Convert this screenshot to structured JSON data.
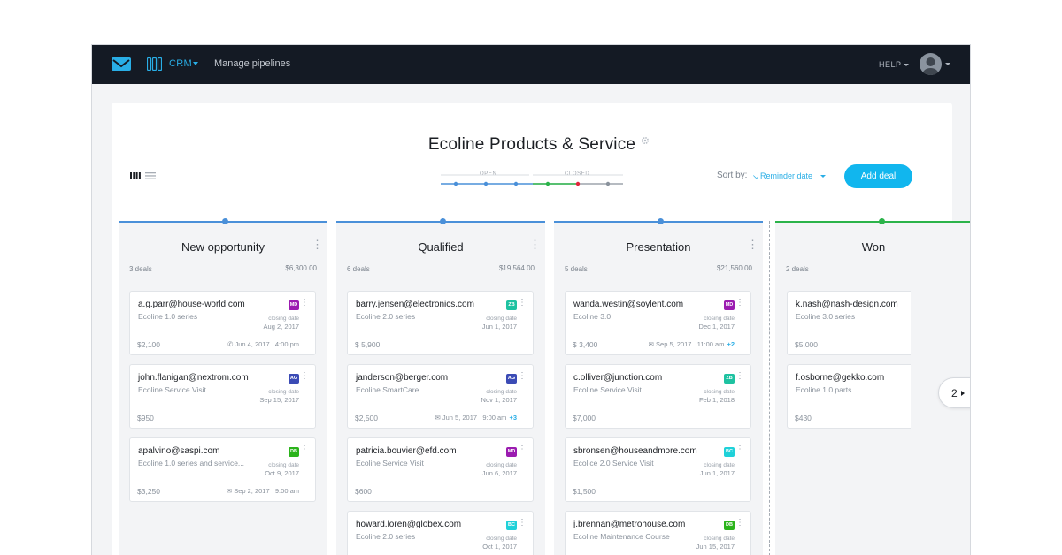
{
  "topbar": {
    "app_label": "CRM",
    "manage_label": "Manage pipelines",
    "help_label": "HELP"
  },
  "board": {
    "title": "Ecoline Products & Service",
    "stages_open_label": "OPEN",
    "stages_closed_label": "CLOSED",
    "sort_label": "Sort by:",
    "sort_value": "Reminder date",
    "add_deal_label": "Add deal"
  },
  "columns": [
    {
      "title": "New opportunity",
      "count": "3 deals",
      "total": "$6,300.00",
      "color": "#4a90d9",
      "cards": [
        {
          "email": "a.g.parr@house-world.com",
          "product": "Ecoline 1.0 series",
          "badge": "MD",
          "badge_color": "#9b1bb0",
          "closing_label": "closing date",
          "closing_date": "Aug 2, 2017",
          "amount": "$2,100",
          "activity": "Jun 4, 2017   4:00 pm",
          "activity_icon": "phone-icon",
          "extra": ""
        },
        {
          "email": "john.flanigan@nextrom.com",
          "product": "Ecoline Service Visit",
          "badge": "AG",
          "badge_color": "#3b4bb5",
          "closing_label": "closing date",
          "closing_date": "Sep 15, 2017",
          "amount": "$950",
          "activity": "",
          "activity_icon": "",
          "extra": ""
        },
        {
          "email": "apalvino@saspi.com",
          "product": "Ecoline 1.0 series and service...",
          "badge": "DB",
          "badge_color": "#2bb31b",
          "closing_label": "closing date",
          "closing_date": "Oct 9, 2017",
          "amount": "$3,250",
          "activity": "Sep 2, 2017   9:00 am",
          "activity_icon": "mail-icon",
          "extra": ""
        }
      ]
    },
    {
      "title": "Qualified",
      "count": "6 deals",
      "total": "$19,564.00",
      "color": "#4a90d9",
      "cards": [
        {
          "email": "barry.jensen@electronics.com",
          "product": "Ecoline 2.0 series",
          "badge": "ZB",
          "badge_color": "#1ec2a1",
          "closing_label": "closing date",
          "closing_date": "Jun 1, 2017",
          "amount": "$ 5,900",
          "activity": "",
          "activity_icon": "",
          "extra": ""
        },
        {
          "email": "janderson@berger.com",
          "product": "Ecoline SmartCare",
          "badge": "AG",
          "badge_color": "#3b4bb5",
          "closing_label": "closing date",
          "closing_date": "Nov 1, 2017",
          "amount": "$2,500",
          "activity": "Jun 5, 2017   9:00 am",
          "activity_icon": "mail-icon",
          "extra": "+3"
        },
        {
          "email": "patricia.bouvier@efd.com",
          "product": "Ecoline Service Visit",
          "badge": "MD",
          "badge_color": "#9b1bb0",
          "closing_label": "closing date",
          "closing_date": "Jun 6, 2017",
          "amount": "$600",
          "activity": "",
          "activity_icon": "",
          "extra": ""
        },
        {
          "email": "howard.loren@globex.com",
          "product": "Ecoline 2.0 series",
          "badge": "BC",
          "badge_color": "#1fd1d9",
          "closing_label": "closing date",
          "closing_date": "Oct 1, 2017",
          "amount": "",
          "activity": "",
          "activity_icon": "",
          "extra": ""
        }
      ]
    },
    {
      "title": "Presentation",
      "count": "5 deals",
      "total": "$21,560.00",
      "color": "#4a90d9",
      "cards": [
        {
          "email": "wanda.westin@soylent.com",
          "product": "Ecoline 3.0",
          "badge": "MD",
          "badge_color": "#9b1bb0",
          "closing_label": "closing date",
          "closing_date": "Dec 1, 2017",
          "amount": "$ 3,400",
          "activity": "Sep 5, 2017   11:00 am",
          "activity_icon": "mail-icon",
          "extra": "+2"
        },
        {
          "email": "c.olliver@junction.com",
          "product": "Ecoline Service Visit",
          "badge": "ZB",
          "badge_color": "#1ec2a1",
          "closing_label": "closing date",
          "closing_date": "Feb 1, 2018",
          "amount": "$7,000",
          "activity": "",
          "activity_icon": "",
          "extra": ""
        },
        {
          "email": "sbronsen@houseandmore.com",
          "product": "Ecolice 2.0 Service Visit",
          "badge": "BC",
          "badge_color": "#1fd1d9",
          "closing_label": "closing date",
          "closing_date": "Jun 1, 2017",
          "amount": "$1,500",
          "activity": "",
          "activity_icon": "",
          "extra": ""
        },
        {
          "email": "j.brennan@metrohouse.com",
          "product": "Ecoline Maintenance Course",
          "badge": "DB",
          "badge_color": "#2bb31b",
          "closing_label": "closing date",
          "closing_date": "Jun 15, 2017",
          "amount": "",
          "activity": "",
          "activity_icon": "",
          "extra": ""
        }
      ]
    },
    {
      "title": "Won",
      "count": "2 deals",
      "total": "",
      "color": "#2bb34a",
      "cards": [
        {
          "email": "k.nash@nash-design.com",
          "product": "Ecoline 3.0 series",
          "badge": "",
          "badge_color": "",
          "closing_label": "",
          "closing_date": "",
          "amount": "$5,000",
          "activity": "",
          "activity_icon": "",
          "extra": ""
        },
        {
          "email": "f.osborne@gekko.com",
          "product": "Ecoline 1.0 parts",
          "badge": "",
          "badge_color": "",
          "closing_label": "",
          "closing_date": "",
          "amount": "$430",
          "activity": "",
          "activity_icon": "",
          "extra": ""
        }
      ]
    }
  ],
  "pager": {
    "label": "2"
  },
  "colors": {
    "accent": "#11b6ee",
    "topbar": "#141a24",
    "open_stage": "#4a90d9",
    "won_stage": "#2bb34a",
    "lost_stage": "#e0263c"
  }
}
